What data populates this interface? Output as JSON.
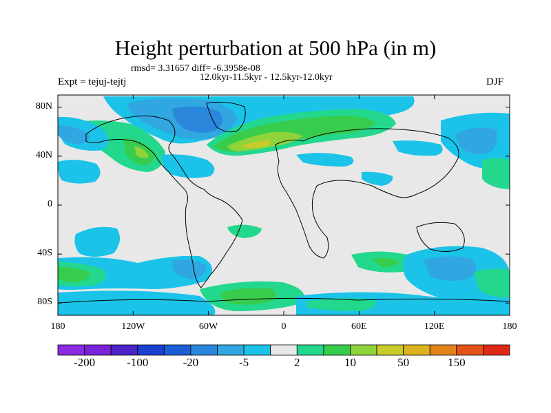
{
  "title": "Height perturbation at 500 hPa (in m)",
  "stats_line": "rmsd= 3.31657 diff= -6.3958e-08",
  "period_line": "12.0kyr-11.5kyr - 12.5kyr-12.0kyr",
  "experiment_label": "Expt = tejuj-tejtj",
  "season_label": "DJF",
  "lat_axis": {
    "ticks": [
      {
        "label": "80N",
        "value": 80
      },
      {
        "label": "40N",
        "value": 40
      },
      {
        "label": "0",
        "value": 0
      },
      {
        "label": "40S",
        "value": -40
      },
      {
        "label": "80S",
        "value": -80
      }
    ]
  },
  "lon_axis": {
    "ticks": [
      {
        "label": "180",
        "value": -180
      },
      {
        "label": "120W",
        "value": -120
      },
      {
        "label": "60W",
        "value": -60
      },
      {
        "label": "0",
        "value": 0
      },
      {
        "label": "60E",
        "value": 60
      },
      {
        "label": "120E",
        "value": 120
      },
      {
        "label": "180",
        "value": 180
      }
    ]
  },
  "colorbar": {
    "colors": [
      "#8a2be2",
      "#7a22d6",
      "#4b22c6",
      "#1b3fd0",
      "#1a5fd6",
      "#2a87dc",
      "#30a7e0",
      "#1bc3e8",
      "#e8e8e8",
      "#23d88c",
      "#38cc4c",
      "#8fd43a",
      "#c8cc28",
      "#dcb21e",
      "#e2841a",
      "#e45418",
      "#e02818"
    ],
    "labels": [
      {
        "text": "-200",
        "boundary": 1
      },
      {
        "text": "-100",
        "boundary": 3
      },
      {
        "text": "-20",
        "boundary": 5
      },
      {
        "text": "-5",
        "boundary": 7
      },
      {
        "text": "2",
        "boundary": 9
      },
      {
        "text": "10",
        "boundary": 11
      },
      {
        "text": "50",
        "boundary": 13
      },
      {
        "text": "150",
        "boundary": 15
      }
    ]
  },
  "field_colors": {
    "neutral": "#e8e8e8",
    "neg_1": "#1bc3e8",
    "neg_2": "#30a7e0",
    "neg_3": "#2a87dc",
    "pos_1": "#23d88c",
    "pos_2": "#38cc4c",
    "pos_3": "#8fd43a",
    "pos_4": "#c8cc28"
  }
}
